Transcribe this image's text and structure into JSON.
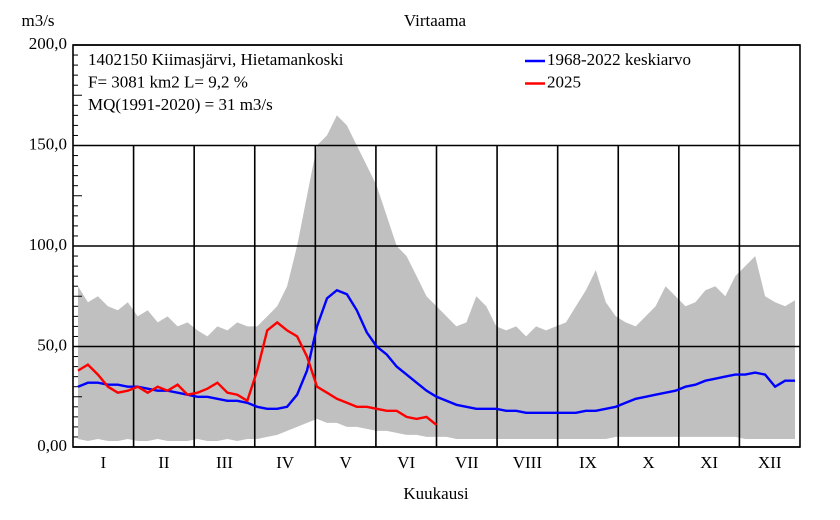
{
  "chart_data": {
    "type": "line",
    "title": "Virtaama",
    "y_label": "m3/s",
    "x_label": "Kuukausi",
    "info": [
      "1402150 Kiimasjärvi, Hietamankoski",
      "F=   3081 km2 L=  9,2 %",
      "MQ(1991-2020) = 31 m3/s"
    ],
    "months": [
      "I",
      "II",
      "III",
      "IV",
      "V",
      "VI",
      "VII",
      "VIII",
      "IX",
      "X",
      "XI",
      "XII"
    ],
    "ylim": [
      0,
      200
    ],
    "yticks": [
      {
        "value": 0,
        "label": "0,00"
      },
      {
        "value": 50,
        "label": "50,0"
      },
      {
        "value": 100,
        "label": "100,0"
      },
      {
        "value": 150,
        "label": "150,0"
      },
      {
        "value": 200,
        "label": "200,0"
      }
    ],
    "grid": true,
    "legend": "top-right",
    "range": {
      "color": "#c0c0c0",
      "upper": [
        80,
        72,
        75,
        70,
        68,
        72,
        65,
        68,
        62,
        65,
        60,
        62,
        58,
        55,
        60,
        58,
        62,
        60,
        60,
        65,
        70,
        80,
        100,
        125,
        150,
        155,
        165,
        160,
        150,
        140,
        130,
        115,
        100,
        95,
        85,
        75,
        70,
        65,
        60,
        62,
        75,
        70,
        60,
        58,
        60,
        55,
        60,
        58,
        60,
        62,
        70,
        78,
        88,
        72,
        65,
        62,
        60,
        65,
        70,
        80,
        75,
        70,
        72,
        78,
        80,
        75,
        85,
        90,
        95,
        75,
        72,
        70,
        73
      ],
      "lower": [
        4,
        3,
        4,
        3,
        3,
        4,
        3,
        3,
        4,
        3,
        3,
        3,
        4,
        3,
        3,
        4,
        3,
        4,
        4,
        5,
        6,
        8,
        10,
        12,
        14,
        12,
        12,
        10,
        10,
        9,
        8,
        8,
        7,
        6,
        6,
        5,
        5,
        5,
        4,
        4,
        4,
        4,
        4,
        4,
        4,
        4,
        4,
        4,
        4,
        4,
        4,
        4,
        4,
        4,
        5,
        5,
        5,
        5,
        5,
        5,
        5,
        5,
        5,
        5,
        5,
        5,
        5,
        4,
        4,
        4,
        4,
        4,
        4
      ]
    },
    "series": [
      {
        "name": "1968-2022 keskiarvo",
        "color": "#0000ff",
        "values": [
          30,
          32,
          32,
          31,
          31,
          30,
          30,
          29,
          28,
          28,
          27,
          26,
          25,
          25,
          24,
          23,
          23,
          22,
          20,
          19,
          19,
          20,
          26,
          38,
          60,
          74,
          78,
          76,
          68,
          57,
          50,
          46,
          40,
          36,
          32,
          28,
          25,
          23,
          21,
          20,
          19,
          19,
          19,
          18,
          18,
          17,
          17,
          17,
          17,
          17,
          17,
          18,
          18,
          19,
          20,
          22,
          24,
          25,
          26,
          27,
          28,
          30,
          31,
          33,
          34,
          35,
          36,
          36,
          37,
          36,
          30,
          33,
          33
        ]
      },
      {
        "name": "2025",
        "color": "#ff0000",
        "values": [
          38,
          41,
          36,
          30,
          27,
          28,
          30,
          27,
          30,
          28,
          31,
          26,
          27,
          29,
          32,
          27,
          26,
          23,
          38,
          58,
          62,
          58,
          55,
          45,
          30,
          27,
          24,
          22,
          20,
          20,
          19,
          18,
          18,
          15,
          14,
          15,
          11,
          null,
          null,
          null,
          null,
          null,
          null,
          null,
          null,
          null,
          null,
          null,
          null,
          null,
          null,
          null,
          null,
          null,
          null,
          null,
          null,
          null,
          null,
          null,
          null,
          null,
          null,
          null,
          null,
          null,
          null,
          null,
          null,
          null,
          null,
          null,
          null
        ]
      }
    ]
  }
}
